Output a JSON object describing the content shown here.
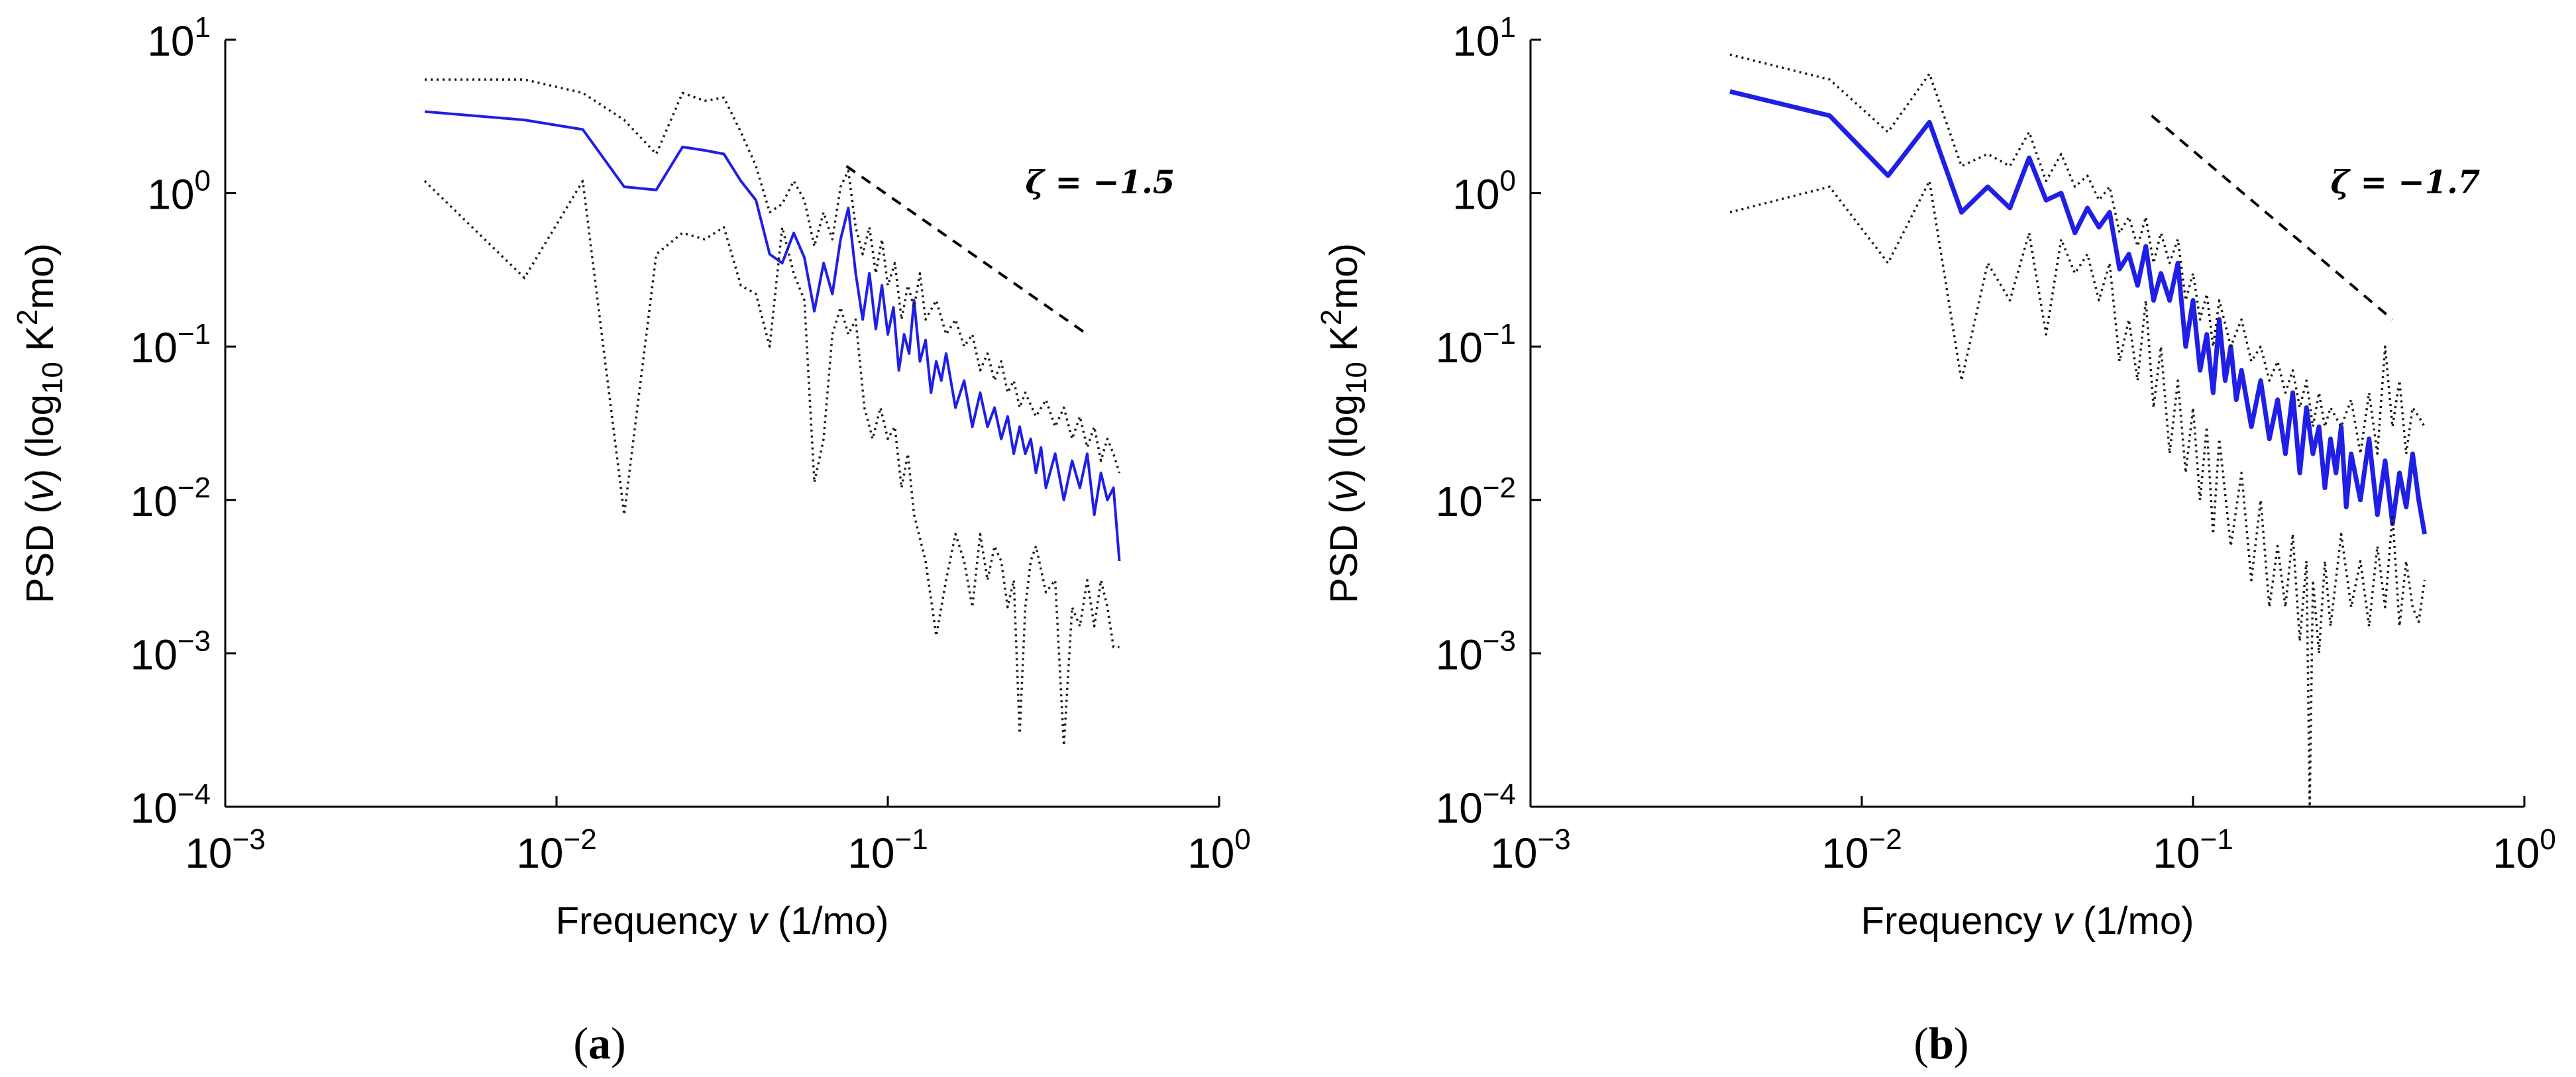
{
  "chart_data": [
    {
      "type": "line",
      "panel_label": "a",
      "xscale": "log",
      "yscale": "log",
      "xlim": [
        0.001,
        1
      ],
      "ylim": [
        0.0001,
        10
      ],
      "xlabel": {
        "prefix": "Frequency ",
        "var": "v",
        "suffix": " (1/mo)"
      },
      "ylabel": {
        "prefix": "PSD (",
        "var": "v",
        "mid": ") (log",
        "sub": "10",
        "mid2": " K",
        "sup": "2",
        "suffix": "mo)"
      },
      "xticks": [
        0.001,
        0.01,
        0.1,
        1
      ],
      "xtick_labels": [
        {
          "base": "10",
          "exp": "-3"
        },
        {
          "base": "10",
          "exp": "-2"
        },
        {
          "base": "10",
          "exp": "-1"
        },
        {
          "base": "10",
          "exp": "0"
        }
      ],
      "yticks": [
        0.0001,
        0.001,
        0.01,
        0.1,
        1,
        10
      ],
      "ytick_labels": [
        {
          "base": "10",
          "exp": "-4"
        },
        {
          "base": "10",
          "exp": "-3"
        },
        {
          "base": "10",
          "exp": "-2"
        },
        {
          "base": "10",
          "exp": "-1"
        },
        {
          "base": "10",
          "exp": "0"
        },
        {
          "base": "10",
          "exp": "1"
        }
      ],
      "slope": {
        "zeta_text": "ζ = −1.5",
        "value": -1.5,
        "x": [
          0.075,
          0.4
        ],
        "y": [
          1.5,
          0.12
        ]
      },
      "series": [
        {
          "name": "PSD",
          "style": "solid-blue",
          "x": [
            0.004,
            0.008,
            0.012,
            0.016,
            0.02,
            0.024,
            0.028,
            0.032,
            0.036,
            0.04,
            0.044,
            0.048,
            0.052,
            0.056,
            0.06,
            0.064,
            0.068,
            0.072,
            0.076,
            0.08,
            0.084,
            0.088,
            0.092,
            0.096,
            0.1,
            0.104,
            0.108,
            0.112,
            0.116,
            0.12,
            0.125,
            0.13,
            0.135,
            0.14,
            0.145,
            0.15,
            0.16,
            0.17,
            0.18,
            0.19,
            0.2,
            0.21,
            0.22,
            0.23,
            0.24,
            0.25,
            0.26,
            0.27,
            0.28,
            0.29,
            0.3,
            0.32,
            0.34,
            0.36,
            0.38,
            0.4,
            0.42,
            0.44,
            0.46,
            0.48,
            0.5
          ],
          "y": [
            3.4,
            3.0,
            2.6,
            1.1,
            1.05,
            2.0,
            1.9,
            1.8,
            1.2,
            0.9,
            0.4,
            0.35,
            0.55,
            0.38,
            0.17,
            0.35,
            0.22,
            0.5,
            0.8,
            0.3,
            0.15,
            0.3,
            0.13,
            0.25,
            0.12,
            0.18,
            0.07,
            0.12,
            0.09,
            0.2,
            0.08,
            0.11,
            0.05,
            0.08,
            0.06,
            0.09,
            0.04,
            0.06,
            0.03,
            0.05,
            0.03,
            0.04,
            0.025,
            0.035,
            0.02,
            0.03,
            0.02,
            0.025,
            0.015,
            0.022,
            0.012,
            0.02,
            0.01,
            0.018,
            0.012,
            0.02,
            0.008,
            0.015,
            0.01,
            0.012,
            0.004
          ]
        },
        {
          "name": "upper bound",
          "style": "dotted-black",
          "x": [
            0.004,
            0.008,
            0.012,
            0.016,
            0.02,
            0.024,
            0.028,
            0.032,
            0.036,
            0.04,
            0.044,
            0.048,
            0.052,
            0.056,
            0.06,
            0.064,
            0.068,
            0.072,
            0.076,
            0.08,
            0.084,
            0.088,
            0.092,
            0.096,
            0.1,
            0.105,
            0.11,
            0.115,
            0.12,
            0.125,
            0.13,
            0.14,
            0.15,
            0.16,
            0.17,
            0.18,
            0.19,
            0.2,
            0.21,
            0.22,
            0.23,
            0.24,
            0.25,
            0.26,
            0.28,
            0.3,
            0.32,
            0.34,
            0.36,
            0.38,
            0.4,
            0.42,
            0.44,
            0.46,
            0.48,
            0.5
          ],
          "y": [
            5.5,
            5.5,
            4.5,
            3.0,
            1.8,
            4.5,
            4.0,
            4.2,
            2.5,
            1.5,
            0.75,
            0.85,
            1.2,
            0.9,
            0.45,
            0.75,
            0.5,
            1.1,
            1.4,
            0.6,
            0.4,
            0.6,
            0.3,
            0.5,
            0.25,
            0.35,
            0.15,
            0.25,
            0.18,
            0.3,
            0.15,
            0.2,
            0.12,
            0.15,
            0.1,
            0.12,
            0.07,
            0.09,
            0.06,
            0.08,
            0.05,
            0.06,
            0.04,
            0.05,
            0.035,
            0.045,
            0.03,
            0.04,
            0.025,
            0.035,
            0.022,
            0.03,
            0.018,
            0.025,
            0.02,
            0.015
          ]
        },
        {
          "name": "lower bound",
          "style": "dotted-black",
          "x": [
            0.004,
            0.008,
            0.012,
            0.016,
            0.02,
            0.024,
            0.028,
            0.032,
            0.036,
            0.04,
            0.044,
            0.048,
            0.052,
            0.056,
            0.06,
            0.064,
            0.068,
            0.072,
            0.076,
            0.08,
            0.085,
            0.09,
            0.095,
            0.1,
            0.105,
            0.11,
            0.115,
            0.12,
            0.13,
            0.14,
            0.15,
            0.16,
            0.17,
            0.18,
            0.19,
            0.2,
            0.21,
            0.22,
            0.23,
            0.24,
            0.25,
            0.26,
            0.27,
            0.28,
            0.3,
            0.32,
            0.34,
            0.36,
            0.38,
            0.4,
            0.42,
            0.44,
            0.46,
            0.48,
            0.5
          ],
          "y": [
            1.2,
            0.28,
            1.2,
            0.008,
            0.4,
            0.55,
            0.5,
            0.6,
            0.25,
            0.22,
            0.1,
            0.6,
            0.3,
            0.2,
            0.013,
            0.025,
            0.12,
            0.18,
            0.12,
            0.15,
            0.04,
            0.025,
            0.04,
            0.025,
            0.03,
            0.012,
            0.02,
            0.008,
            0.004,
            0.0013,
            0.003,
            0.006,
            0.004,
            0.002,
            0.006,
            0.003,
            0.005,
            0.004,
            0.002,
            0.003,
            0.0003,
            0.002,
            0.004,
            0.005,
            0.0025,
            0.003,
            0.00025,
            0.002,
            0.0015,
            0.003,
            0.0015,
            0.003,
            0.002,
            0.0011,
            0.0011
          ]
        }
      ]
    },
    {
      "type": "line",
      "panel_label": "b",
      "xscale": "log",
      "yscale": "log",
      "xlim": [
        0.001,
        1
      ],
      "ylim": [
        0.0001,
        10
      ],
      "xlabel": {
        "prefix": "Frequency ",
        "var": "v",
        "suffix": " (1/mo)"
      },
      "ylabel": {
        "prefix": "PSD (",
        "var": "v",
        "mid": ") (log",
        "sub": "10",
        "mid2": " K",
        "sup": "2",
        "suffix": "mo)"
      },
      "xticks": [
        0.001,
        0.01,
        0.1,
        1
      ],
      "xtick_labels": [
        {
          "base": "10",
          "exp": "-3"
        },
        {
          "base": "10",
          "exp": "-2"
        },
        {
          "base": "10",
          "exp": "-1"
        },
        {
          "base": "10",
          "exp": "0"
        }
      ],
      "yticks": [
        0.0001,
        0.001,
        0.01,
        0.1,
        1,
        10
      ],
      "ytick_labels": [
        {
          "base": "10",
          "exp": "-4"
        },
        {
          "base": "10",
          "exp": "-3"
        },
        {
          "base": "10",
          "exp": "-2"
        },
        {
          "base": "10",
          "exp": "-1"
        },
        {
          "base": "10",
          "exp": "0"
        },
        {
          "base": "10",
          "exp": "1"
        }
      ],
      "slope": {
        "zeta_text": "ζ = −1.7",
        "value": -1.7,
        "x": [
          0.075,
          0.4
        ],
        "y": [
          3.2,
          0.15
        ]
      },
      "series": [
        {
          "name": "PSD",
          "style": "solid-blue-thick",
          "x": [
            0.004,
            0.008,
            0.012,
            0.016,
            0.02,
            0.024,
            0.028,
            0.032,
            0.036,
            0.04,
            0.044,
            0.048,
            0.052,
            0.056,
            0.06,
            0.064,
            0.068,
            0.072,
            0.076,
            0.08,
            0.085,
            0.09,
            0.095,
            0.1,
            0.105,
            0.11,
            0.115,
            0.12,
            0.125,
            0.13,
            0.135,
            0.14,
            0.15,
            0.16,
            0.17,
            0.18,
            0.19,
            0.2,
            0.21,
            0.22,
            0.23,
            0.24,
            0.25,
            0.26,
            0.27,
            0.28,
            0.29,
            0.3,
            0.32,
            0.34,
            0.36,
            0.38,
            0.4,
            0.42,
            0.44,
            0.46,
            0.48,
            0.5
          ],
          "y": [
            4.6,
            3.2,
            1.3,
            2.9,
            0.75,
            1.1,
            0.8,
            1.7,
            0.9,
            1.0,
            0.55,
            0.8,
            0.6,
            0.75,
            0.32,
            0.4,
            0.25,
            0.45,
            0.2,
            0.3,
            0.2,
            0.35,
            0.1,
            0.2,
            0.07,
            0.12,
            0.05,
            0.15,
            0.06,
            0.1,
            0.045,
            0.07,
            0.03,
            0.06,
            0.025,
            0.045,
            0.02,
            0.05,
            0.015,
            0.04,
            0.02,
            0.03,
            0.012,
            0.025,
            0.015,
            0.03,
            0.009,
            0.02,
            0.01,
            0.025,
            0.008,
            0.018,
            0.007,
            0.015,
            0.009,
            0.02,
            0.01,
            0.006
          ]
        },
        {
          "name": "upper bound",
          "style": "dotted-black",
          "x": [
            0.004,
            0.008,
            0.012,
            0.016,
            0.02,
            0.024,
            0.028,
            0.032,
            0.036,
            0.04,
            0.044,
            0.048,
            0.052,
            0.056,
            0.06,
            0.064,
            0.068,
            0.072,
            0.076,
            0.08,
            0.085,
            0.09,
            0.095,
            0.1,
            0.105,
            0.11,
            0.115,
            0.12,
            0.13,
            0.14,
            0.15,
            0.16,
            0.17,
            0.18,
            0.19,
            0.2,
            0.21,
            0.22,
            0.23,
            0.24,
            0.25,
            0.26,
            0.28,
            0.3,
            0.32,
            0.34,
            0.36,
            0.38,
            0.4,
            0.42,
            0.44,
            0.46,
            0.48,
            0.5
          ],
          "y": [
            8.0,
            5.5,
            2.5,
            6.0,
            1.5,
            1.8,
            1.5,
            2.5,
            1.2,
            1.8,
            1.1,
            1.3,
            0.9,
            1.1,
            0.55,
            0.7,
            0.45,
            0.7,
            0.35,
            0.55,
            0.35,
            0.5,
            0.2,
            0.3,
            0.15,
            0.22,
            0.1,
            0.2,
            0.1,
            0.15,
            0.08,
            0.1,
            0.06,
            0.08,
            0.05,
            0.07,
            0.04,
            0.06,
            0.03,
            0.05,
            0.03,
            0.04,
            0.03,
            0.045,
            0.02,
            0.05,
            0.02,
            0.1,
            0.03,
            0.06,
            0.02,
            0.04,
            0.035,
            0.03
          ]
        },
        {
          "name": "lower bound",
          "style": "dotted-black",
          "x": [
            0.004,
            0.008,
            0.012,
            0.016,
            0.02,
            0.024,
            0.028,
            0.032,
            0.036,
            0.04,
            0.044,
            0.048,
            0.052,
            0.056,
            0.06,
            0.064,
            0.068,
            0.072,
            0.076,
            0.08,
            0.085,
            0.09,
            0.095,
            0.1,
            0.105,
            0.11,
            0.115,
            0.12,
            0.13,
            0.14,
            0.15,
            0.16,
            0.17,
            0.18,
            0.19,
            0.2,
            0.21,
            0.22,
            0.225,
            0.23,
            0.24,
            0.25,
            0.26,
            0.28,
            0.3,
            0.32,
            0.34,
            0.36,
            0.38,
            0.4,
            0.42,
            0.44,
            0.46,
            0.48,
            0.5
          ],
          "y": [
            0.75,
            1.1,
            0.35,
            1.2,
            0.06,
            0.35,
            0.2,
            0.55,
            0.12,
            0.5,
            0.3,
            0.4,
            0.2,
            0.35,
            0.08,
            0.15,
            0.06,
            0.2,
            0.04,
            0.1,
            0.02,
            0.06,
            0.015,
            0.04,
            0.01,
            0.03,
            0.006,
            0.025,
            0.005,
            0.015,
            0.003,
            0.01,
            0.002,
            0.005,
            0.002,
            0.006,
            0.0012,
            0.004,
            0.0001,
            0.003,
            0.001,
            0.004,
            0.0015,
            0.006,
            0.002,
            0.004,
            0.0015,
            0.005,
            0.002,
            0.008,
            0.0015,
            0.004,
            0.002,
            0.0016,
            0.003
          ]
        }
      ]
    }
  ]
}
